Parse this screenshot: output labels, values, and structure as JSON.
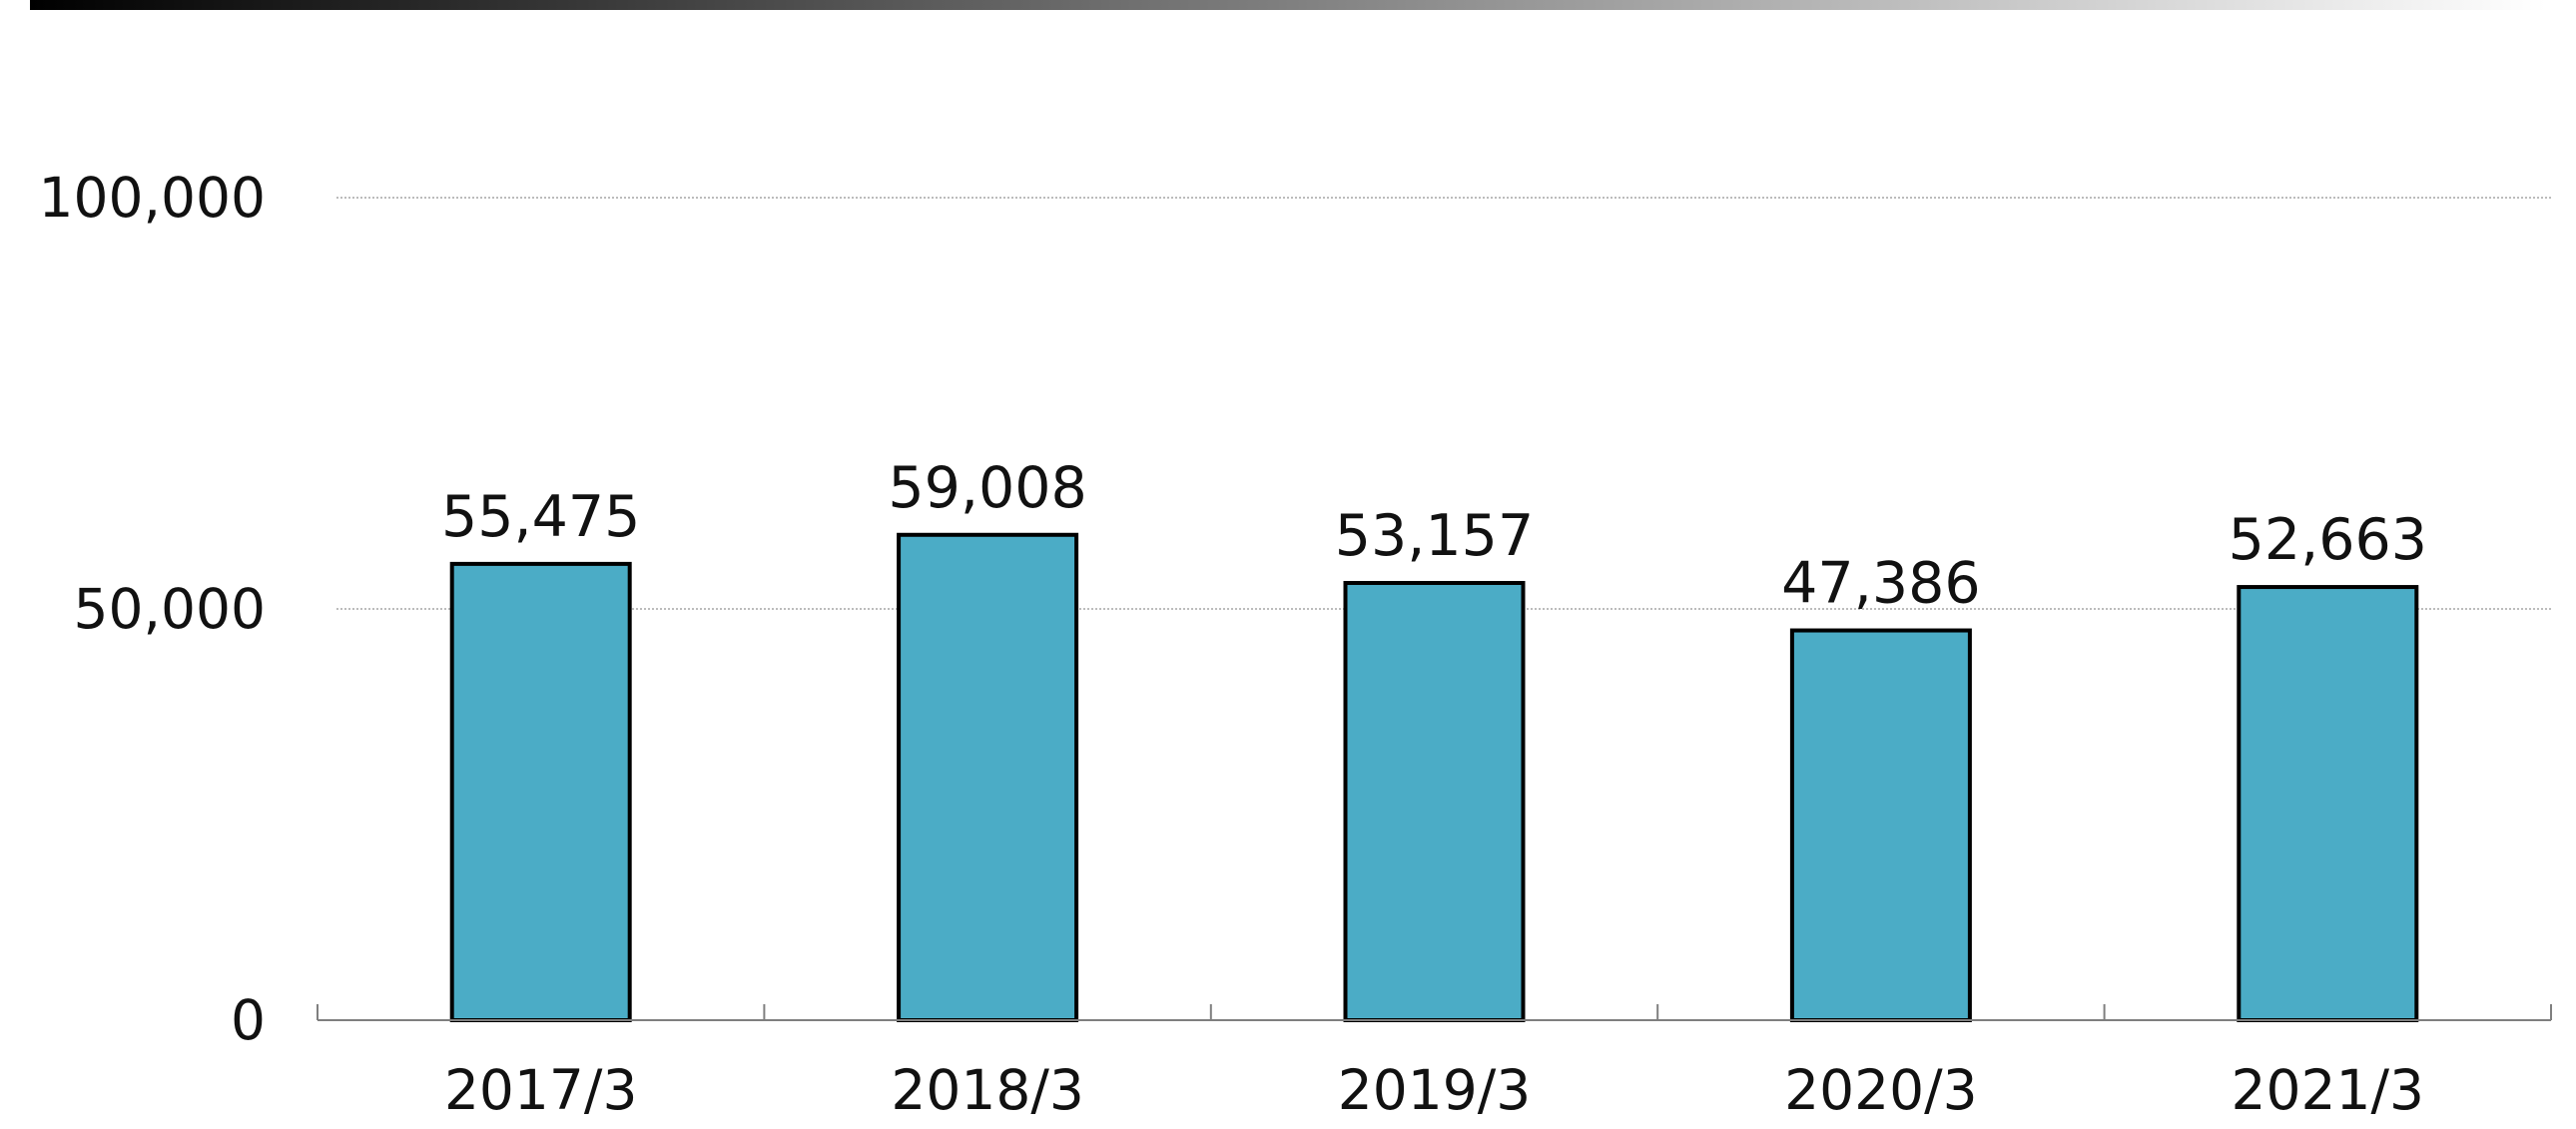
{
  "chart_data": {
    "type": "bar",
    "categories": [
      "2017/3",
      "2018/3",
      "2019/3",
      "2020/3",
      "2021/3"
    ],
    "values": [
      55475,
      59008,
      53157,
      47386,
      52663
    ],
    "value_labels": [
      "55,475",
      "59,008",
      "53,157",
      "47,386",
      "52,663"
    ],
    "title": "",
    "xlabel": "",
    "ylabel": "",
    "ylim": [
      0,
      100000
    ],
    "yticks": [
      {
        "value": 0,
        "label": "0"
      },
      {
        "value": 50000,
        "label": "50,000"
      },
      {
        "value": 100000,
        "label": "100,000"
      }
    ],
    "grid": true,
    "legend": "none",
    "colors": {
      "bar_fill": "#4BACC6",
      "bar_stroke": "#000000",
      "gridline": "#a6a6a6",
      "axis": "#7f7f7f",
      "header_bar_start": "#000000",
      "header_bar_end": "#ffffff"
    }
  }
}
